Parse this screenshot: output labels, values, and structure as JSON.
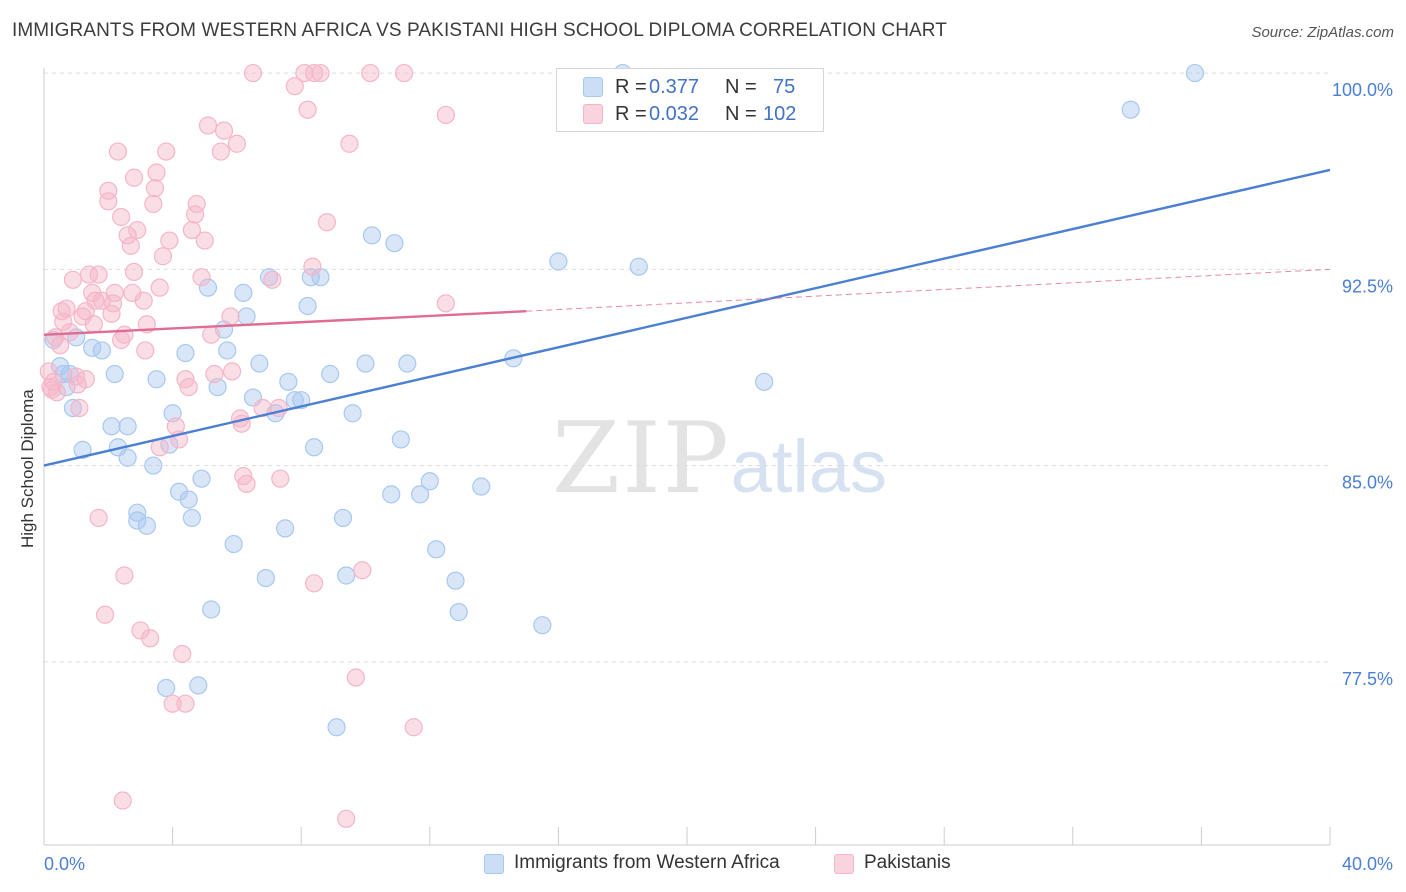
{
  "title": "IMMIGRANTS FROM WESTERN AFRICA VS PAKISTANI HIGH SCHOOL DIPLOMA CORRELATION CHART",
  "source": "Source: ZipAtlas.com",
  "watermark": {
    "zip": "ZIP",
    "atlas": "atlas"
  },
  "stats": [
    {
      "r_label": "R =",
      "r_value": "0.377",
      "n_label": "N =",
      "n_value": "75",
      "color": "#a9c8ef"
    },
    {
      "r_label": "R =",
      "r_value": "0.032",
      "n_label": "N =",
      "n_value": "102",
      "color": "#f5b5c8"
    }
  ],
  "legend": [
    {
      "label": "Immigrants from Western Africa",
      "color": "#a9c8ef"
    },
    {
      "label": "Pakistanis",
      "color": "#f5b5c8"
    }
  ],
  "chart_data": {
    "type": "scatter",
    "ylabel": "High School Diploma",
    "x_tick_labels": [
      "0.0%",
      "40.0%"
    ],
    "y_tick_labels": [
      "100.0%",
      "92.5%",
      "85.0%",
      "77.5%"
    ],
    "xlim": [
      0,
      40
    ],
    "ylim": [
      70.5,
      100.5
    ],
    "y_ticks": [
      100,
      92.5,
      85,
      77.5
    ],
    "grid": "horizontal dashed",
    "series": [
      {
        "name": "Immigrants from Western Africa",
        "color": "#4a7fd4",
        "fill": "#a9c8ef",
        "trend": {
          "x": [
            0,
            40
          ],
          "y": [
            85.0,
            96.3
          ],
          "style": "solid"
        },
        "points": [
          [
            0.3,
            89.8
          ],
          [
            0.5,
            88.8
          ],
          [
            0.7,
            88.0
          ],
          [
            0.6,
            88.5
          ],
          [
            0.9,
            87.2
          ],
          [
            1.2,
            85.6
          ],
          [
            1.5,
            89.5
          ],
          [
            1.8,
            89.4
          ],
          [
            2.2,
            88.5
          ],
          [
            2.1,
            86.5
          ],
          [
            2.3,
            85.7
          ],
          [
            2.6,
            85.3
          ],
          [
            2.6,
            86.5
          ],
          [
            2.9,
            83.2
          ],
          [
            2.9,
            82.9
          ],
          [
            3.2,
            82.7
          ],
          [
            3.4,
            85.0
          ],
          [
            3.5,
            88.3
          ],
          [
            3.9,
            85.8
          ],
          [
            4.0,
            87.0
          ],
          [
            4.2,
            84.0
          ],
          [
            4.4,
            89.3
          ],
          [
            4.5,
            83.7
          ],
          [
            4.6,
            83.0
          ],
          [
            4.9,
            84.5
          ],
          [
            5.1,
            91.8
          ],
          [
            5.2,
            79.5
          ],
          [
            5.4,
            88.0
          ],
          [
            5.6,
            90.2
          ],
          [
            5.7,
            89.4
          ],
          [
            5.9,
            82.0
          ],
          [
            6.2,
            91.6
          ],
          [
            6.3,
            90.7
          ],
          [
            6.5,
            87.6
          ],
          [
            6.7,
            88.9
          ],
          [
            6.9,
            80.7
          ],
          [
            7.0,
            92.2
          ],
          [
            7.2,
            87.0
          ],
          [
            7.5,
            82.6
          ],
          [
            7.6,
            88.2
          ],
          [
            7.8,
            87.5
          ],
          [
            8.0,
            87.5
          ],
          [
            8.2,
            91.1
          ],
          [
            8.3,
            92.2
          ],
          [
            8.4,
            85.7
          ],
          [
            8.6,
            92.2
          ],
          [
            8.9,
            88.5
          ],
          [
            9.1,
            75.0
          ],
          [
            9.3,
            83.0
          ],
          [
            9.4,
            80.8
          ],
          [
            9.6,
            87.0
          ],
          [
            10.0,
            88.9
          ],
          [
            10.2,
            93.8
          ],
          [
            10.8,
            83.9
          ],
          [
            10.9,
            93.5
          ],
          [
            11.1,
            86.0
          ],
          [
            11.3,
            88.9
          ],
          [
            11.7,
            83.9
          ],
          [
            12.0,
            84.4
          ],
          [
            12.2,
            81.8
          ],
          [
            12.8,
            80.6
          ],
          [
            12.9,
            79.4
          ],
          [
            13.6,
            84.2
          ],
          [
            14.6,
            89.1
          ],
          [
            15.5,
            78.9
          ],
          [
            16.0,
            92.8
          ],
          [
            18.0,
            100.0
          ],
          [
            18.5,
            92.6
          ],
          [
            22.4,
            88.2
          ],
          [
            33.8,
            98.6
          ],
          [
            35.8,
            100.0
          ],
          [
            0.8,
            88.5
          ],
          [
            1.0,
            89.9
          ],
          [
            3.8,
            76.5
          ],
          [
            4.8,
            76.6
          ]
        ]
      },
      {
        "name": "Pakistanis",
        "color": "#e06c93",
        "fill": "#f5b5c8",
        "trend": {
          "x": [
            0,
            15
          ],
          "y": [
            90.0,
            90.9
          ],
          "style": "solid",
          "extended": {
            "x": [
              15,
              40
            ],
            "y": [
              90.9,
              92.5
            ],
            "style": "dashed"
          }
        },
        "points": [
          [
            0.2,
            88.0
          ],
          [
            0.3,
            88.2
          ],
          [
            0.4,
            87.8
          ],
          [
            0.5,
            89.6
          ],
          [
            0.6,
            90.5
          ],
          [
            0.7,
            91.0
          ],
          [
            0.8,
            90.1
          ],
          [
            0.9,
            92.1
          ],
          [
            1.0,
            88.4
          ],
          [
            1.1,
            87.2
          ],
          [
            1.2,
            90.7
          ],
          [
            1.3,
            90.9
          ],
          [
            1.4,
            92.3
          ],
          [
            1.5,
            91.6
          ],
          [
            1.6,
            91.3
          ],
          [
            1.7,
            83.0
          ],
          [
            1.7,
            92.3
          ],
          [
            1.8,
            91.3
          ],
          [
            1.9,
            79.3
          ],
          [
            2.0,
            95.1
          ],
          [
            2.0,
            95.5
          ],
          [
            2.1,
            90.8
          ],
          [
            2.2,
            91.6
          ],
          [
            2.3,
            97.0
          ],
          [
            2.4,
            94.5
          ],
          [
            2.5,
            90.0
          ],
          [
            2.5,
            80.8
          ],
          [
            2.6,
            93.8
          ],
          [
            2.7,
            93.4
          ],
          [
            2.8,
            96.0
          ],
          [
            2.8,
            92.4
          ],
          [
            2.9,
            94.0
          ],
          [
            3.0,
            78.7
          ],
          [
            3.1,
            91.3
          ],
          [
            3.2,
            90.4
          ],
          [
            3.3,
            78.4
          ],
          [
            3.4,
            95.0
          ],
          [
            3.5,
            96.2
          ],
          [
            3.6,
            91.8
          ],
          [
            3.7,
            93.0
          ],
          [
            3.8,
            97.0
          ],
          [
            3.9,
            93.6
          ],
          [
            4.0,
            75.9
          ],
          [
            4.1,
            86.5
          ],
          [
            4.2,
            86.0
          ],
          [
            4.3,
            77.8
          ],
          [
            4.4,
            88.3
          ],
          [
            4.5,
            88.0
          ],
          [
            4.6,
            94.0
          ],
          [
            4.7,
            94.6
          ],
          [
            4.9,
            92.2
          ],
          [
            5.0,
            93.6
          ],
          [
            5.1,
            98.0
          ],
          [
            5.3,
            88.5
          ],
          [
            5.5,
            97.0
          ],
          [
            5.6,
            97.8
          ],
          [
            5.8,
            90.7
          ],
          [
            6.0,
            97.3
          ],
          [
            6.1,
            86.8
          ],
          [
            6.2,
            84.6
          ],
          [
            6.3,
            84.3
          ],
          [
            6.5,
            100.0
          ],
          [
            7.1,
            92.1
          ],
          [
            7.3,
            87.2
          ],
          [
            7.8,
            99.5
          ],
          [
            8.1,
            100.0
          ],
          [
            8.2,
            98.6
          ],
          [
            8.4,
            100.0
          ],
          [
            8.6,
            100.0
          ],
          [
            9.4,
            71.5
          ],
          [
            9.7,
            76.9
          ],
          [
            9.9,
            81.0
          ],
          [
            11.2,
            100.0
          ],
          [
            11.5,
            75.0
          ],
          [
            12.5,
            98.4
          ],
          [
            12.5,
            91.2
          ],
          [
            8.8,
            94.3
          ],
          [
            9.5,
            97.3
          ],
          [
            8.4,
            80.5
          ],
          [
            0.15,
            88.6
          ],
          [
            0.25,
            87.9
          ],
          [
            1.3,
            88.3
          ],
          [
            2.4,
            89.8
          ],
          [
            3.6,
            85.7
          ],
          [
            5.2,
            90.0
          ],
          [
            4.4,
            75.9
          ],
          [
            6.8,
            87.2
          ],
          [
            0.35,
            89.9
          ],
          [
            1.55,
            90.4
          ],
          [
            2.75,
            91.6
          ],
          [
            3.45,
            95.6
          ],
          [
            4.75,
            95.0
          ],
          [
            6.15,
            86.6
          ],
          [
            8.35,
            92.6
          ],
          [
            10.15,
            100.0
          ],
          [
            1.05,
            88.1
          ],
          [
            0.55,
            90.9
          ],
          [
            2.15,
            91.2
          ],
          [
            3.15,
            89.4
          ],
          [
            5.85,
            88.6
          ],
          [
            7.35,
            84.5
          ],
          [
            2.45,
            72.2
          ]
        ]
      }
    ]
  }
}
